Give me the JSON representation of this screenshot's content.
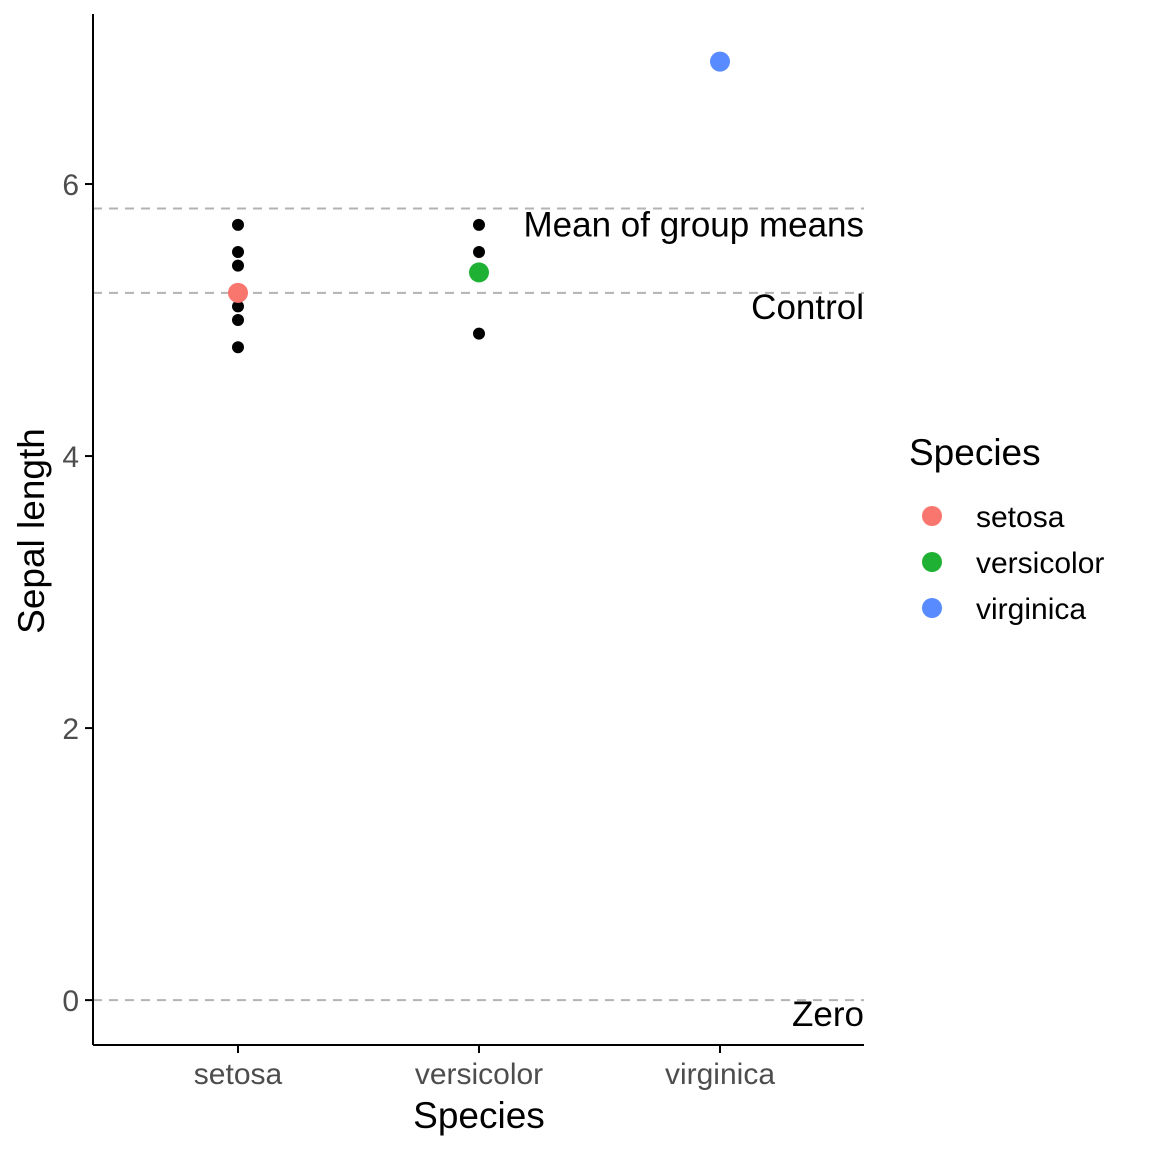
{
  "chart_data": {
    "type": "scatter",
    "xlabel": "Species",
    "ylabel": "Sepal length",
    "categories": [
      "setosa",
      "versicolor",
      "virginica"
    ],
    "y_ticks": [
      0,
      2,
      4,
      6
    ],
    "ylim": [
      -0.33,
      7.25
    ],
    "grid": false,
    "raw_points": [
      {
        "category": "setosa",
        "y": 5.7
      },
      {
        "category": "setosa",
        "y": 5.5
      },
      {
        "category": "setosa",
        "y": 5.4
      },
      {
        "category": "setosa",
        "y": 5.1
      },
      {
        "category": "setosa",
        "y": 5.0
      },
      {
        "category": "setosa",
        "y": 4.8
      },
      {
        "category": "versicolor",
        "y": 5.7
      },
      {
        "category": "versicolor",
        "y": 5.5
      },
      {
        "category": "versicolor",
        "y": 4.9
      }
    ],
    "group_means": [
      {
        "category": "setosa",
        "y": 5.2
      },
      {
        "category": "versicolor",
        "y": 5.35
      },
      {
        "category": "virginica",
        "y": 6.9
      }
    ],
    "reference_lines": [
      {
        "label": "Mean of group means",
        "y": 5.82
      },
      {
        "label": "Control",
        "y": 5.2
      },
      {
        "label": "Zero",
        "y": 0
      }
    ],
    "legend": {
      "title": "Species",
      "placement": "right",
      "entries": [
        {
          "label": "setosa",
          "color": "#F8766D"
        },
        {
          "label": "versicolor",
          "color": "#1FB134"
        },
        {
          "label": "virginica",
          "color": "#578BFF"
        }
      ]
    },
    "colors": {
      "raw_point": "#000000",
      "reference_line": "#b3b3b3",
      "axis": "#000000"
    }
  }
}
